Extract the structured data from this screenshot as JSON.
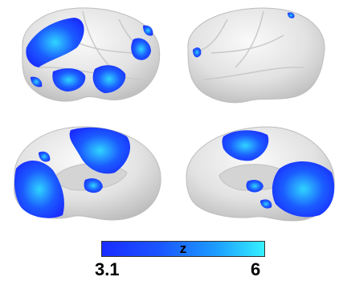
{
  "colorbar": {
    "label": "z",
    "min_label": "3.1",
    "max_label": "6",
    "colors": [
      "#1a2cff",
      "#1c9cff",
      "#36f0ff"
    ]
  },
  "views": [
    "left-lateral",
    "right-lateral",
    "left-medial",
    "right-medial"
  ],
  "colors": {
    "cortex": "#e6e6e6",
    "activation_low": "#1a2cff",
    "activation_high": "#36f0ff"
  }
}
